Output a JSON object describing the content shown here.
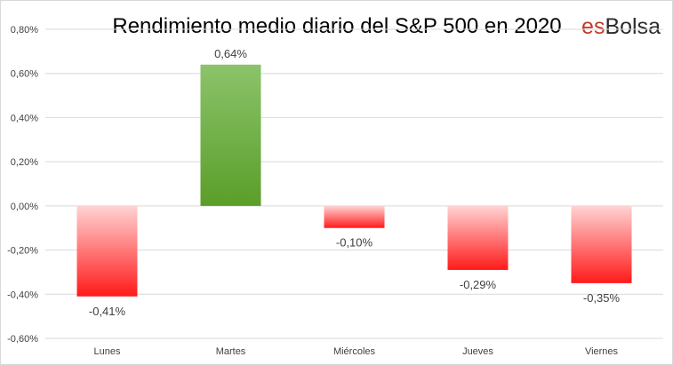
{
  "chart_data": {
    "type": "bar",
    "title": "Rendimiento medio diario del S&P 500 en 2020",
    "categories": [
      "Lunes",
      "Martes",
      "Miércoles",
      "Jueves",
      "Viernes"
    ],
    "values": [
      -0.41,
      0.64,
      -0.1,
      -0.29,
      -0.35
    ],
    "data_labels": [
      "-0,41%",
      "0,64%",
      "-0,10%",
      "-0,29%",
      "-0,35%"
    ],
    "ylim": [
      -0.6,
      0.8
    ],
    "y_ticks": [
      0.8,
      0.6,
      0.4,
      0.2,
      0.0,
      -0.2,
      -0.4,
      -0.6
    ],
    "y_tick_labels": [
      "0,80%",
      "0,60%",
      "0,40%",
      "0,20%",
      "0,00%",
      "-0,20%",
      "-0,40%",
      "-0,60%"
    ],
    "grid": true,
    "legend": false,
    "xlabel": "",
    "ylabel": ""
  },
  "brand": {
    "prefix": "es",
    "name": "Bolsa",
    "prefix_color": "#c0392b",
    "name_color": "#2b2b2b"
  },
  "colors": {
    "positive_top": "#8cc36a",
    "positive_bottom": "#5a9e2a",
    "negative_top": "#ffd3d3",
    "negative_bottom": "#ff1a1a",
    "grid": "#d9d9d9"
  }
}
